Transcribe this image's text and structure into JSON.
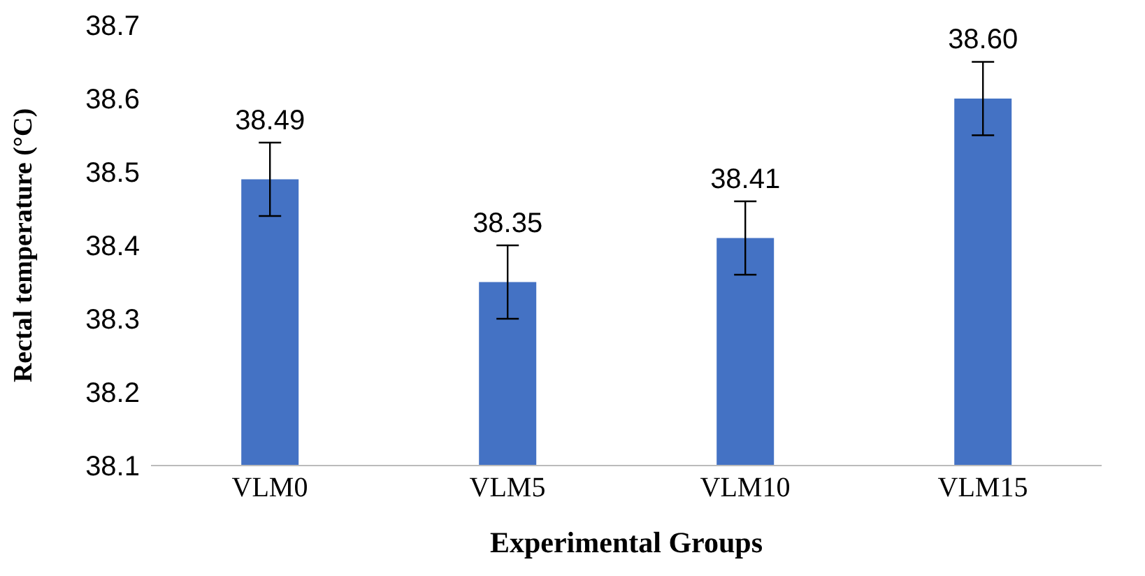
{
  "chart_data": {
    "type": "bar",
    "xlabel": "Experimental Groups",
    "ylabel": "Rectal temperature (°C)",
    "categories": [
      "VLM0",
      "VLM5",
      "VLM10",
      "VLM15"
    ],
    "values": [
      38.49,
      38.35,
      38.41,
      38.6
    ],
    "errors": [
      0.05,
      0.05,
      0.05,
      0.05
    ],
    "value_labels": [
      "38.49",
      "38.35",
      "38.41",
      "38.60"
    ],
    "color": "#4472c4",
    "ylim": [
      38.1,
      38.7
    ],
    "yticks": [
      38.1,
      38.2,
      38.3,
      38.4,
      38.5,
      38.6,
      38.7
    ],
    "grid": false,
    "legend": false
  }
}
